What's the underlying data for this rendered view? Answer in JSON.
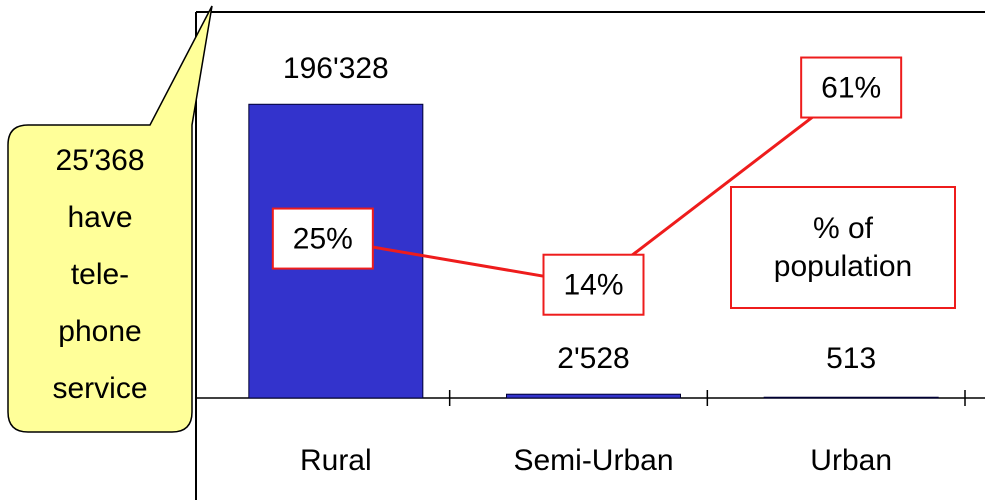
{
  "chart_data": {
    "type": "bar",
    "categories": [
      "Rural",
      "Semi-Urban",
      "Urban"
    ],
    "series": [
      {
        "name": "Telephone service",
        "type": "bar",
        "color": "#3333cc",
        "values": [
          196328,
          2528,
          513
        ],
        "value_labels": [
          "196'328",
          "2'528",
          "513"
        ]
      },
      {
        "name": "% of population",
        "type": "line",
        "axis": "y2",
        "color": "#ee1c1c",
        "values": [
          25,
          14,
          61
        ],
        "value_labels": [
          "25%",
          "14%",
          "61%"
        ]
      }
    ],
    "ylim": [
      0,
      258000
    ],
    "y2lim": [
      -13,
      79
    ],
    "annotation": [
      "25′368",
      "have",
      "tele-",
      "phone",
      "service"
    ]
  }
}
